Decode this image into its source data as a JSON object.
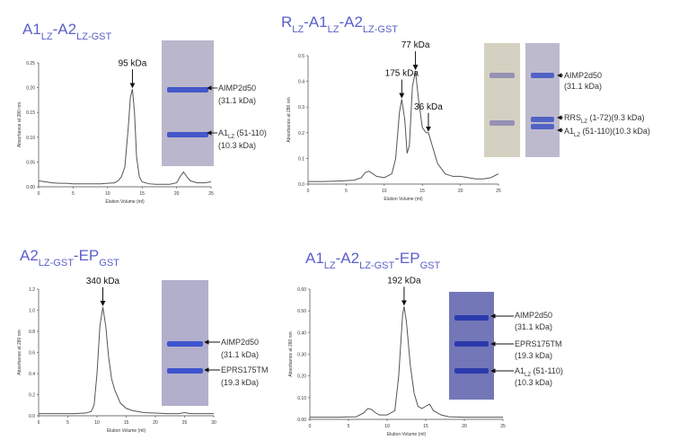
{
  "chart_data": [
    {
      "type": "line",
      "title": [
        {
          "text": "A1"
        },
        {
          "text": "LZ",
          "sub": true
        },
        {
          "text": "-A2"
        },
        {
          "text": "LZ-GST",
          "sub": true
        }
      ],
      "x_label": "Elution Volume (ml)",
      "y_label": "Absorbance at 280 nm",
      "xlim": [
        0,
        25
      ],
      "xticks": [
        0,
        5,
        10,
        15,
        20,
        25
      ],
      "ylim": [
        0,
        0.25
      ],
      "yticks": [
        {
          "value": 0,
          "label": "0.00"
        },
        {
          "value": 0.05,
          "label": "0.05"
        },
        {
          "value": 0.1,
          "label": "0.10"
        },
        {
          "value": 0.15,
          "label": "0.15"
        },
        {
          "value": 0.2,
          "label": "0.20"
        },
        {
          "value": 0.25,
          "label": "0.25"
        }
      ],
      "color": "#555555",
      "x": [
        0,
        1,
        2,
        3,
        4,
        5,
        6,
        7,
        8,
        9,
        10,
        11,
        11.5,
        12,
        12.5,
        13,
        13.3,
        13.6,
        13.9,
        14.2,
        14.6,
        15,
        16,
        17,
        18,
        19,
        20,
        20.5,
        21,
        21.5,
        22,
        23,
        24,
        25
      ],
      "values": [
        0.012,
        0.01,
        0.008,
        0.007,
        0.007,
        0.006,
        0.006,
        0.006,
        0.006,
        0.006,
        0.007,
        0.008,
        0.012,
        0.02,
        0.04,
        0.12,
        0.18,
        0.197,
        0.15,
        0.06,
        0.02,
        0.01,
        0.006,
        0.005,
        0.005,
        0.005,
        0.008,
        0.02,
        0.03,
        0.02,
        0.012,
        0.008,
        0.008,
        0.01
      ],
      "annotations": [
        {
          "text": "95 kDa",
          "x": 13.6,
          "y": 0.197
        }
      ],
      "gel_labels": [
        "AIMP2d50",
        "(31.1 kDa)",
        [
          {
            "text": "A1"
          },
          {
            "text": "LZ",
            "sub": true
          },
          {
            "text": " (51-110)"
          }
        ],
        "(10.3 kDa)"
      ]
    },
    {
      "type": "line",
      "title": [
        {
          "text": "R"
        },
        {
          "text": "LZ",
          "sub": true
        },
        {
          "text": "-A1"
        },
        {
          "text": "LZ",
          "sub": true
        },
        {
          "text": "-A2"
        },
        {
          "text": "LZ-GST",
          "sub": true
        }
      ],
      "x_label": "Elution Volume (ml)",
      "y_label": "Absorbance at 280 nm",
      "xlim": [
        0,
        25
      ],
      "xticks": [
        0,
        5,
        10,
        15,
        20,
        25
      ],
      "ylim": [
        0,
        0.5
      ],
      "yticks": [
        {
          "value": 0,
          "label": "0.0"
        },
        0.1,
        0.2,
        0.3,
        0.4,
        0.5
      ],
      "color": "#555555",
      "x": [
        0,
        2,
        4,
        6,
        7,
        7.5,
        8,
        8.5,
        9,
        10,
        11,
        11.5,
        12,
        12.3,
        12.7,
        13,
        13.3,
        13.7,
        14.1,
        14.5,
        15,
        15.5,
        15.8,
        16.3,
        17,
        18,
        19,
        20,
        22,
        23,
        24,
        25
      ],
      "values": [
        0.01,
        0.01,
        0.012,
        0.015,
        0.025,
        0.045,
        0.05,
        0.04,
        0.03,
        0.025,
        0.04,
        0.1,
        0.28,
        0.33,
        0.25,
        0.12,
        0.15,
        0.38,
        0.44,
        0.33,
        0.22,
        0.2,
        0.2,
        0.15,
        0.08,
        0.04,
        0.03,
        0.03,
        0.02,
        0.02,
        0.025,
        0.04
      ],
      "annotations": [
        {
          "text": "175 kDa",
          "x": 12.3,
          "y": 0.33
        },
        {
          "text": "77 kDa",
          "x": 14.1,
          "y": 0.44
        },
        {
          "text": "36 kDa",
          "x": 15.8,
          "y": 0.2
        }
      ],
      "gel_labels": [
        "AIMP2d50",
        "(31.1 kDa)",
        [
          {
            "text": "RRS"
          },
          {
            "text": "LZ",
            "sub": true
          },
          {
            "text": " (1-72)(9.3 kDa)"
          }
        ],
        [
          {
            "text": "A1"
          },
          {
            "text": "LZ",
            "sub": true
          },
          {
            "text": " (51-110)(10.3 kDa)"
          }
        ]
      ]
    },
    {
      "type": "line",
      "title": [
        {
          "text": "A2"
        },
        {
          "text": "LZ-GST",
          "sub": true
        },
        {
          "text": "-EP"
        },
        {
          "text": "GST",
          "sub": true
        }
      ],
      "x_label": "Elution Volume (ml)",
      "y_label": "Absorbance at 280 nm",
      "xlim": [
        0,
        30
      ],
      "xticks": [
        0,
        5,
        10,
        15,
        20,
        25,
        30
      ],
      "ylim": [
        0,
        1.2
      ],
      "yticks": [
        {
          "value": 0,
          "label": "0.0"
        },
        0.2,
        0.4,
        0.6,
        0.8,
        {
          "value": 1,
          "label": "1.0"
        },
        1.2
      ],
      "color": "#555555",
      "x": [
        0,
        2,
        4,
        6,
        8,
        9,
        9.5,
        10,
        10.5,
        11,
        11.5,
        12,
        12.5,
        13,
        14,
        15,
        16,
        18,
        20,
        22,
        24,
        25,
        26,
        28,
        30
      ],
      "values": [
        0.02,
        0.02,
        0.02,
        0.02,
        0.025,
        0.04,
        0.1,
        0.4,
        0.85,
        1.03,
        0.85,
        0.55,
        0.35,
        0.25,
        0.12,
        0.07,
        0.05,
        0.03,
        0.025,
        0.02,
        0.02,
        0.03,
        0.02,
        0.02,
        0.02
      ],
      "annotations": [
        {
          "text": "340 kDa",
          "x": 11,
          "y": 1.03
        }
      ],
      "gel_labels": [
        "AIMP2d50",
        "(31.1 kDa)",
        "EPRS175TM",
        "(19.3 kDa)"
      ]
    },
    {
      "type": "line",
      "title": [
        {
          "text": "A1"
        },
        {
          "text": "LZ",
          "sub": true
        },
        {
          "text": "-A2"
        },
        {
          "text": "LZ-GST",
          "sub": true
        },
        {
          "text": "-EP"
        },
        {
          "text": "GST",
          "sub": true
        }
      ],
      "x_label": "Elution Volume (ml)",
      "y_label": "Absorbance at 280 nm",
      "xlim": [
        0,
        25
      ],
      "xticks": [
        0,
        5,
        10,
        15,
        20,
        25
      ],
      "ylim": [
        0,
        0.6
      ],
      "yticks": [
        {
          "value": 0,
          "label": "0.00"
        },
        {
          "value": 0.1,
          "label": "0.10"
        },
        {
          "value": 0.2,
          "label": "0.20"
        },
        {
          "value": 0.3,
          "label": "0.30"
        },
        {
          "value": 0.4,
          "label": "0.40"
        },
        {
          "value": 0.5,
          "label": "0.50"
        },
        {
          "value": 0.6,
          "label": "0.60"
        }
      ],
      "color": "#555555",
      "x": [
        0,
        2,
        4,
        6,
        7,
        7.5,
        8,
        8.5,
        9,
        10,
        11,
        11.5,
        12,
        12.2,
        12.5,
        13,
        13.5,
        14,
        14.5,
        15,
        15.5,
        16,
        17,
        18,
        20,
        22,
        24,
        25
      ],
      "values": [
        0.01,
        0.01,
        0.01,
        0.012,
        0.03,
        0.05,
        0.045,
        0.03,
        0.02,
        0.02,
        0.04,
        0.2,
        0.48,
        0.52,
        0.45,
        0.25,
        0.12,
        0.06,
        0.05,
        0.06,
        0.07,
        0.04,
        0.02,
        0.012,
        0.01,
        0.01,
        0.01,
        0.01
      ],
      "annotations": [
        {
          "text": "192 kDa",
          "x": 12.2,
          "y": 0.52
        }
      ],
      "gel_labels": [
        "AIMP2d50",
        "(31.1 kDa)",
        "EPRS175TM",
        "(19.3 kDa)",
        [
          {
            "text": "A1"
          },
          {
            "text": "LZ",
            "sub": true
          },
          {
            "text": " (51-110)"
          }
        ],
        "(10.3 kDa)"
      ]
    }
  ]
}
